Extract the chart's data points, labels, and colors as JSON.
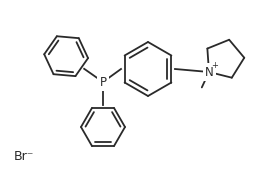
{
  "bg_color": "#ffffff",
  "line_color": "#2a2a2a",
  "lw": 1.3,
  "figsize": [
    2.7,
    1.76
  ],
  "dpi": 100,
  "p_label": "P",
  "n_label": "N",
  "plus": "+",
  "br_label": "Br⁻"
}
